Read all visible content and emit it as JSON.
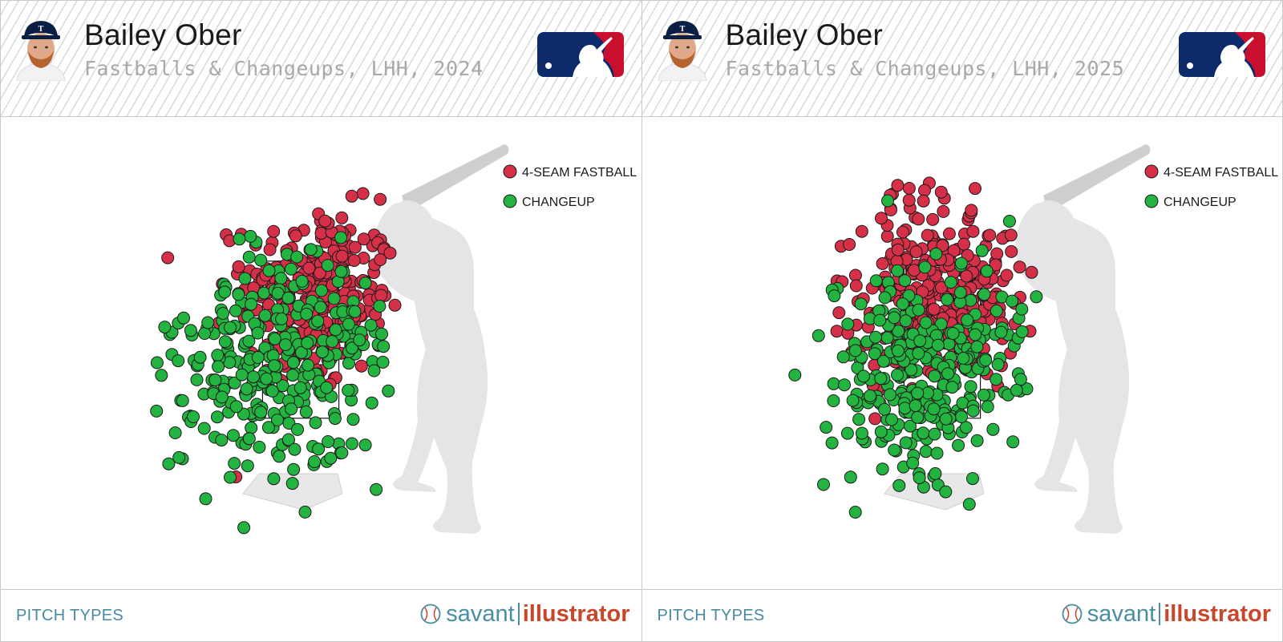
{
  "panels": [
    {
      "player_name": "Bailey Ober",
      "subtitle": "Fastballs & Changeups, LHH, 2024",
      "footer_label": "PITCH TYPES",
      "brand": {
        "part1": "savant",
        "part2": "illustrator"
      }
    },
    {
      "player_name": "Bailey Ober",
      "subtitle": "Fastballs & Changeups, LHH, 2025",
      "footer_label": "PITCH TYPES",
      "brand": {
        "part1": "savant",
        "part2": "illustrator"
      }
    }
  ],
  "colors": {
    "four_seam": "#d63048",
    "changeup": "#23b340",
    "marker_edge": "#1a1a1a",
    "silhouette": "#e5e5e5",
    "header_stripe": "#d4ddd7",
    "footer_text": "#4a8aa0",
    "brand_savant": "#4a8ea3",
    "brand_illustrator": "#c8472b",
    "mlb_blue": "#0d2b6b",
    "mlb_red": "#c8102e"
  },
  "icons": [
    "player-headshot",
    "mlb-logo",
    "batter-silhouette",
    "home-plate",
    "strike-zone",
    "baseball-icon"
  ],
  "chart_data": [
    {
      "type": "scatter",
      "title": "Bailey Ober",
      "subtitle": "Fastballs & Changeups, LHH, 2024",
      "xlabel": "",
      "ylabel": "",
      "legend_position": "top-right",
      "grid": false,
      "series": [
        {
          "name": "4-SEAM FASTBALL",
          "color": "#d63048",
          "cluster": {
            "cx": 0.3,
            "cy": 2.95,
            "sx": 0.42,
            "sy": 0.5,
            "rot": -0.12
          },
          "count": 300
        },
        {
          "name": "CHANGEUP",
          "color": "#23b340",
          "cluster": {
            "cx": -0.12,
            "cy": 2.2,
            "sx": 0.58,
            "sy": 0.62,
            "rot": -0.5
          },
          "count": 330
        }
      ]
    },
    {
      "type": "scatter",
      "title": "Bailey Ober",
      "subtitle": "Fastballs & Changeups, LHH, 2025",
      "xlabel": "",
      "ylabel": "",
      "legend_position": "top-right",
      "grid": false,
      "series": [
        {
          "name": "4-SEAM FASTBALL",
          "color": "#d63048",
          "cluster": {
            "cx": 0.05,
            "cy": 3.05,
            "sx": 0.48,
            "sy": 0.55,
            "rot": -0.2
          },
          "count": 320
        },
        {
          "name": "CHANGEUP",
          "color": "#23b340",
          "cluster": {
            "cx": -0.05,
            "cy": 2.05,
            "sx": 0.5,
            "sy": 0.58,
            "rot": -0.45
          },
          "count": 300
        }
      ]
    }
  ]
}
